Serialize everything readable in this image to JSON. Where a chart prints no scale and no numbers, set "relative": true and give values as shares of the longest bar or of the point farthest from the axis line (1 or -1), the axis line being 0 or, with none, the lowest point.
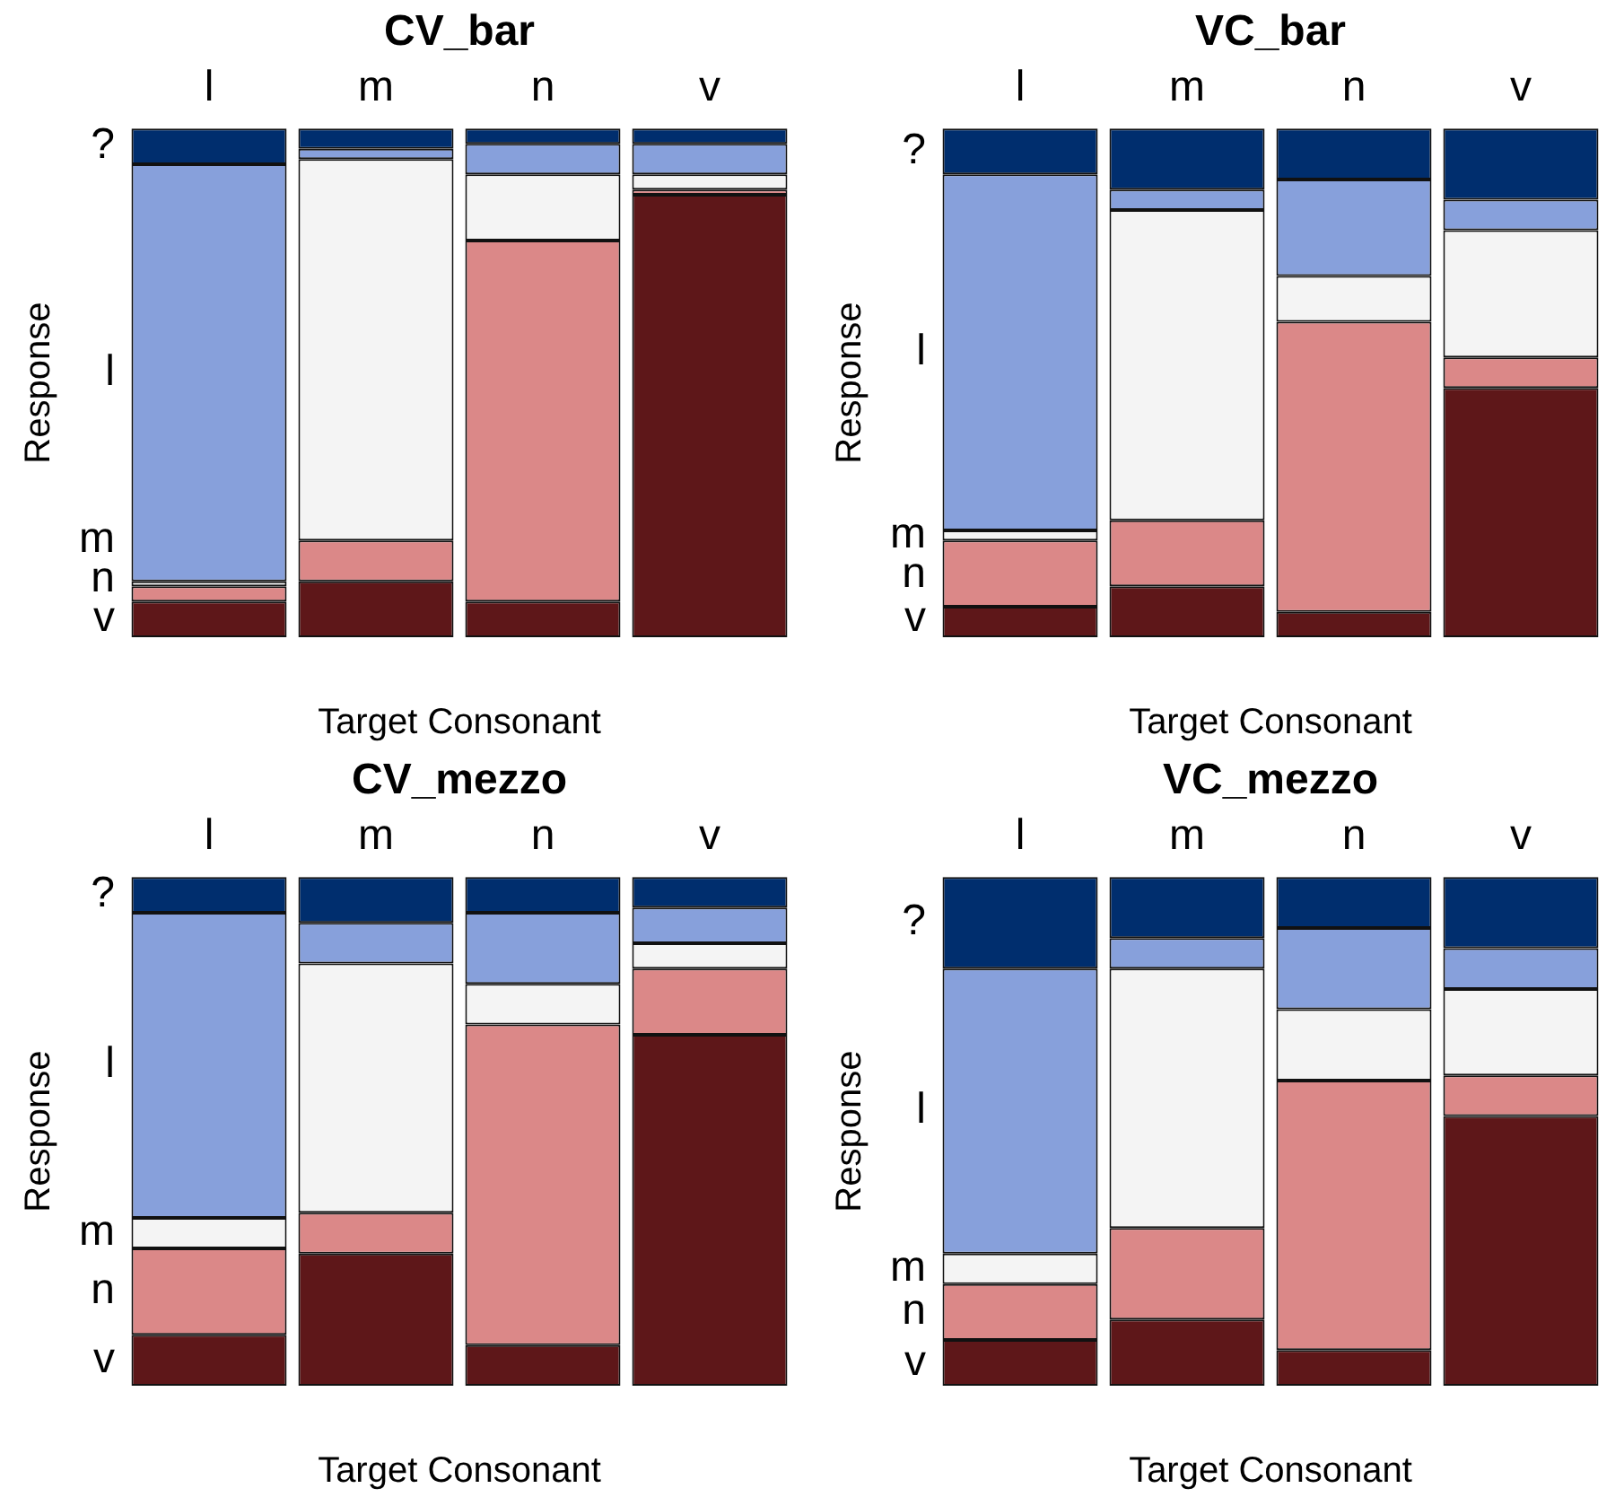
{
  "chart_data": [
    {
      "type": "bar",
      "title": "CV_bar",
      "xlabel": "Target Consonant",
      "ylabel": "Response",
      "categories": [
        "l",
        "m",
        "n",
        "v"
      ],
      "stacked": true,
      "relative": true,
      "legend": false,
      "series": [
        {
          "name": "v",
          "color": "#5e1719",
          "values": [
            0.07,
            0.11,
            0.07,
            0.87
          ]
        },
        {
          "name": "n",
          "color": "#db8888",
          "values": [
            0.03,
            0.08,
            0.71,
            0.01
          ]
        },
        {
          "name": "m",
          "color": "#f4f4f4",
          "values": [
            0.01,
            0.75,
            0.13,
            0.03
          ]
        },
        {
          "name": "l",
          "color": "#87a0db",
          "values": [
            0.82,
            0.02,
            0.06,
            0.06
          ]
        },
        {
          "name": "?",
          "color": "#002e6e",
          "values": [
            0.07,
            0.04,
            0.03,
            0.03
          ]
        }
      ]
    },
    {
      "type": "bar",
      "title": "VC_bar",
      "xlabel": "Target Consonant",
      "ylabel": "Response",
      "categories": [
        "l",
        "m",
        "n",
        "v"
      ],
      "stacked": true,
      "relative": true,
      "legend": false,
      "series": [
        {
          "name": "v",
          "color": "#5e1719",
          "values": [
            0.06,
            0.1,
            0.05,
            0.49
          ]
        },
        {
          "name": "n",
          "color": "#db8888",
          "values": [
            0.13,
            0.13,
            0.57,
            0.06
          ]
        },
        {
          "name": "m",
          "color": "#f4f4f4",
          "values": [
            0.02,
            0.61,
            0.09,
            0.25
          ]
        },
        {
          "name": "l",
          "color": "#87a0db",
          "values": [
            0.7,
            0.04,
            0.19,
            0.06
          ]
        },
        {
          "name": "?",
          "color": "#002e6e",
          "values": [
            0.09,
            0.12,
            0.1,
            0.14
          ]
        }
      ]
    },
    {
      "type": "bar",
      "title": "CV_mezzo",
      "xlabel": "Target Consonant",
      "ylabel": "Response",
      "categories": [
        "l",
        "m",
        "n",
        "v"
      ],
      "stacked": true,
      "relative": true,
      "legend": false,
      "series": [
        {
          "name": "v",
          "color": "#5e1719",
          "values": [
            0.1,
            0.26,
            0.08,
            0.69
          ]
        },
        {
          "name": "n",
          "color": "#db8888",
          "values": [
            0.17,
            0.08,
            0.63,
            0.13
          ]
        },
        {
          "name": "m",
          "color": "#f4f4f4",
          "values": [
            0.06,
            0.49,
            0.08,
            0.05
          ]
        },
        {
          "name": "l",
          "color": "#87a0db",
          "values": [
            0.6,
            0.08,
            0.14,
            0.07
          ]
        },
        {
          "name": "?",
          "color": "#002e6e",
          "values": [
            0.07,
            0.09,
            0.07,
            0.06
          ]
        }
      ]
    },
    {
      "type": "bar",
      "title": "VC_mezzo",
      "xlabel": "Target Consonant",
      "ylabel": "Response",
      "categories": [
        "l",
        "m",
        "n",
        "v"
      ],
      "stacked": true,
      "relative": true,
      "legend": false,
      "series": [
        {
          "name": "v",
          "color": "#5e1719",
          "values": [
            0.09,
            0.13,
            0.07,
            0.53
          ]
        },
        {
          "name": "n",
          "color": "#db8888",
          "values": [
            0.11,
            0.18,
            0.53,
            0.08
          ]
        },
        {
          "name": "m",
          "color": "#f4f4f4",
          "values": [
            0.06,
            0.51,
            0.14,
            0.17
          ]
        },
        {
          "name": "l",
          "color": "#87a0db",
          "values": [
            0.56,
            0.06,
            0.16,
            0.08
          ]
        },
        {
          "name": "?",
          "color": "#002e6e",
          "values": [
            0.18,
            0.12,
            0.1,
            0.14
          ]
        }
      ]
    }
  ]
}
